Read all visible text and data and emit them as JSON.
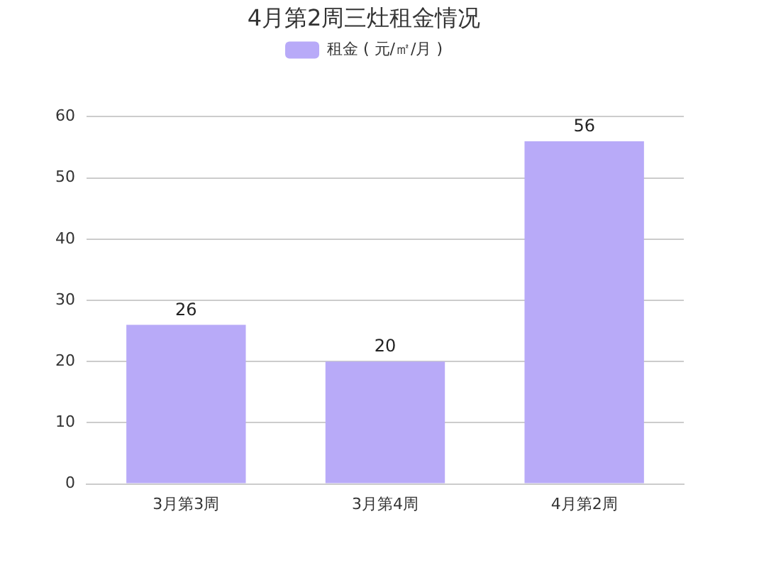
{
  "chart_data": {
    "type": "bar",
    "title": "4月第2周三灶租金情况",
    "categories": [
      "3月第3周",
      "3月第4周",
      "4月第2周"
    ],
    "series": [
      {
        "name": "租金 ( 元/㎡/月 )",
        "color": "#b8aaf8",
        "values": [
          26,
          20,
          56
        ]
      }
    ],
    "ylim": [
      0,
      60
    ],
    "yticks": [
      0,
      10,
      20,
      30,
      40,
      50,
      60
    ],
    "grid": "y",
    "legend": "top",
    "data_labels": true
  }
}
